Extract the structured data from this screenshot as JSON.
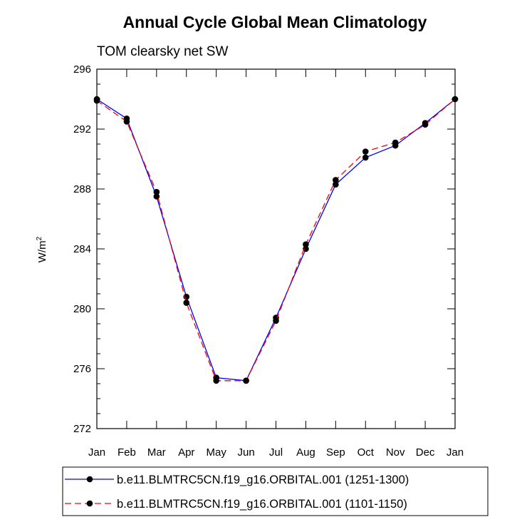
{
  "chart_data": {
    "type": "line",
    "title": "Annual Cycle Global Mean Climatology",
    "subtitle": "TOM clearsky net SW",
    "ylabel": "W/m",
    "ylabel_superscript": "2",
    "xlabel": "",
    "ylim": [
      272,
      296
    ],
    "yticks": [
      272,
      276,
      280,
      284,
      288,
      292,
      296
    ],
    "categories": [
      "Jan",
      "Feb",
      "Mar",
      "Apr",
      "May",
      "Jun",
      "Jul",
      "Aug",
      "Sep",
      "Oct",
      "Nov",
      "Dec",
      "Jan"
    ],
    "legend_placement": "bottom",
    "series": [
      {
        "name": "b.e11.BLMTRC5CN.f19_g16.ORBITAL.001 (1251-1300)",
        "color": "#0000ff",
        "dash": "solid",
        "values": [
          294.0,
          292.7,
          287.5,
          280.8,
          275.4,
          275.2,
          279.4,
          284.0,
          288.3,
          290.1,
          290.9,
          292.4,
          294.0
        ]
      },
      {
        "name": "b.e11.BLMTRC5CN.f19_g16.ORBITAL.001 (1101-1150)",
        "color": "#ff0000",
        "dash": "dashed",
        "values": [
          293.9,
          292.5,
          287.8,
          280.4,
          275.2,
          275.2,
          279.2,
          284.3,
          288.6,
          290.5,
          291.1,
          292.3,
          294.0
        ]
      }
    ]
  }
}
